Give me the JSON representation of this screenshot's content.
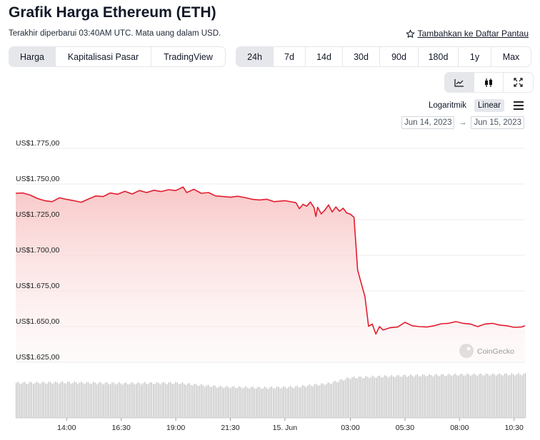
{
  "header": {
    "title": "Grafik Harga Ethereum (ETH)",
    "subtitle": "Terakhir diperbarui 03:40AM UTC. Mata uang dalam USD.",
    "watchlist_label": "Tambahkan ke Daftar Pantau"
  },
  "view_tabs": [
    {
      "label": "Harga",
      "active": true
    },
    {
      "label": "Kapitalisasi Pasar",
      "active": false
    },
    {
      "label": "TradingView",
      "active": false
    }
  ],
  "range_tabs": [
    {
      "label": "24h",
      "active": true
    },
    {
      "label": "7d",
      "active": false
    },
    {
      "label": "14d",
      "active": false
    },
    {
      "label": "30d",
      "active": false
    },
    {
      "label": "90d",
      "active": false
    },
    {
      "label": "180d",
      "active": false
    },
    {
      "label": "1y",
      "active": false
    },
    {
      "label": "Max",
      "active": false
    }
  ],
  "chart_tools": [
    {
      "icon": "line-chart-icon",
      "active": true
    },
    {
      "icon": "candlestick-icon",
      "active": false
    },
    {
      "icon": "expand-icon",
      "active": false
    }
  ],
  "scale": {
    "log_label": "Logaritmik",
    "linear_label": "Linear",
    "selected": "linear"
  },
  "date_range": {
    "from": "Jun 14, 2023",
    "to": "Jun 15, 2023",
    "arrow": "→"
  },
  "watermark": "CoinGecko",
  "colors": {
    "line": "#e11d2e",
    "fill_top": "#f8c4c4",
    "volume": "#c4c4c4",
    "grid": "#eeeeee",
    "active_bg": "#e5e7eb"
  },
  "chart_data": {
    "type": "area",
    "title": "Grafik Harga Ethereum (ETH)",
    "currency": "USD",
    "y_scale": "linear",
    "ylim": [
      1625,
      1775
    ],
    "y_ticks": [
      1625,
      1650,
      1675,
      1700,
      1725,
      1750,
      1775
    ],
    "y_tick_labels": [
      "US$1.625,00",
      "US$1.650,00",
      "US$1.675,00",
      "US$1.700,00",
      "US$1.725,00",
      "US$1.750,00",
      "US$1.775,00"
    ],
    "x_start": "2023-06-14 11:40",
    "x_end": "2023-06-15 11:00",
    "x_ticks": [
      "2023-06-14 14:00",
      "2023-06-14 16:30",
      "2023-06-14 19:00",
      "2023-06-14 21:30",
      "2023-06-15 00:00",
      "2023-06-15 03:00",
      "2023-06-15 05:30",
      "2023-06-15 08:00",
      "2023-06-15 10:30"
    ],
    "x_tick_labels": [
      "14:00",
      "16:30",
      "19:00",
      "21:30",
      "15. Jun",
      "03:00",
      "05:30",
      "08:00",
      "10:30"
    ],
    "series": [
      {
        "points": [
          [
            "2023-06-14 11:40",
            1743.5
          ],
          [
            "2023-06-14 12:00",
            1743.7
          ],
          [
            "2023-06-14 12:20",
            1742.2
          ],
          [
            "2023-06-14 12:40",
            1739.8
          ],
          [
            "2023-06-14 13:00",
            1738.3
          ],
          [
            "2023-06-14 13:20",
            1737.6
          ],
          [
            "2023-06-14 13:40",
            1740.3
          ],
          [
            "2023-06-14 14:00",
            1739.2
          ],
          [
            "2023-06-14 14:20",
            1738.3
          ],
          [
            "2023-06-14 14:40",
            1737.2
          ],
          [
            "2023-06-14 15:00",
            1739.5
          ],
          [
            "2023-06-14 15:20",
            1741.6
          ],
          [
            "2023-06-14 15:40",
            1741.2
          ],
          [
            "2023-06-14 16:00",
            1743.7
          ],
          [
            "2023-06-14 16:20",
            1742.8
          ],
          [
            "2023-06-14 16:40",
            1744.9
          ],
          [
            "2023-06-14 17:00",
            1743.0
          ],
          [
            "2023-06-14 17:20",
            1745.4
          ],
          [
            "2023-06-14 17:40",
            1744.0
          ],
          [
            "2023-06-14 18:00",
            1745.6
          ],
          [
            "2023-06-14 18:20",
            1744.7
          ],
          [
            "2023-06-14 18:40",
            1746.0
          ],
          [
            "2023-06-14 19:00",
            1745.4
          ],
          [
            "2023-06-14 19:20",
            1747.9
          ],
          [
            "2023-06-14 19:30",
            1744.0
          ],
          [
            "2023-06-14 19:50",
            1746.3
          ],
          [
            "2023-06-14 20:10",
            1743.5
          ],
          [
            "2023-06-14 20:30",
            1744.0
          ],
          [
            "2023-06-14 20:50",
            1741.6
          ],
          [
            "2023-06-14 21:10",
            1741.2
          ],
          [
            "2023-06-14 21:30",
            1740.7
          ],
          [
            "2023-06-14 21:50",
            1741.4
          ],
          [
            "2023-06-14 22:10",
            1740.5
          ],
          [
            "2023-06-14 22:30",
            1739.3
          ],
          [
            "2023-06-14 22:50",
            1738.8
          ],
          [
            "2023-06-14 23:10",
            1739.3
          ],
          [
            "2023-06-14 23:30",
            1737.6
          ],
          [
            "2023-06-15 00:00",
            1738.3
          ],
          [
            "2023-06-15 00:30",
            1736.9
          ],
          [
            "2023-06-15 00:40",
            1732.7
          ],
          [
            "2023-06-15 00:50",
            1735.8
          ],
          [
            "2023-06-15 01:00",
            1734.4
          ],
          [
            "2023-06-15 01:10",
            1737.4
          ],
          [
            "2023-06-15 01:20",
            1733.5
          ],
          [
            "2023-06-15 01:25",
            1727.2
          ],
          [
            "2023-06-15 01:30",
            1733.7
          ],
          [
            "2023-06-15 01:40",
            1729.0
          ],
          [
            "2023-06-15 01:50",
            1731.8
          ],
          [
            "2023-06-15 02:00",
            1735.3
          ],
          [
            "2023-06-15 02:10",
            1730.4
          ],
          [
            "2023-06-15 02:20",
            1733.9
          ],
          [
            "2023-06-15 02:30",
            1730.9
          ],
          [
            "2023-06-15 02:40",
            1733.0
          ],
          [
            "2023-06-15 02:50",
            1729.7
          ],
          [
            "2023-06-15 03:00",
            1728.8
          ],
          [
            "2023-06-15 03:10",
            1726.7
          ],
          [
            "2023-06-15 03:20",
            1689.6
          ],
          [
            "2023-06-15 03:30",
            1680.3
          ],
          [
            "2023-06-15 03:40",
            1671.1
          ],
          [
            "2023-06-15 03:50",
            1650.2
          ],
          [
            "2023-06-15 04:00",
            1651.8
          ],
          [
            "2023-06-15 04:10",
            1644.8
          ],
          [
            "2023-06-15 04:20",
            1650.0
          ],
          [
            "2023-06-15 04:30",
            1647.6
          ],
          [
            "2023-06-15 04:50",
            1649.3
          ],
          [
            "2023-06-15 05:10",
            1649.7
          ],
          [
            "2023-06-15 05:30",
            1653.0
          ],
          [
            "2023-06-15 05:50",
            1650.6
          ],
          [
            "2023-06-15 06:10",
            1650.0
          ],
          [
            "2023-06-15 06:30",
            1649.7
          ],
          [
            "2023-06-15 06:50",
            1650.6
          ],
          [
            "2023-06-15 07:10",
            1652.0
          ],
          [
            "2023-06-15 07:30",
            1652.3
          ],
          [
            "2023-06-15 07:50",
            1653.5
          ],
          [
            "2023-06-15 08:10",
            1652.3
          ],
          [
            "2023-06-15 08:30",
            1651.8
          ],
          [
            "2023-06-15 08:50",
            1650.0
          ],
          [
            "2023-06-15 09:10",
            1651.8
          ],
          [
            "2023-06-15 09:30",
            1652.3
          ],
          [
            "2023-06-15 09:50",
            1651.1
          ],
          [
            "2023-06-15 10:10",
            1650.6
          ],
          [
            "2023-06-15 10:30",
            1649.5
          ],
          [
            "2023-06-15 10:50",
            1649.7
          ],
          [
            "2023-06-15 11:00",
            1650.6
          ]
        ]
      }
    ],
    "volume": {
      "unit": "relative (0-1)",
      "points": [
        [
          "2023-06-14 11:40",
          0.72
        ],
        [
          "2023-06-14 14:00",
          0.73
        ],
        [
          "2023-06-14 16:30",
          0.71
        ],
        [
          "2023-06-14 19:00",
          0.72
        ],
        [
          "2023-06-14 21:00",
          0.64
        ],
        [
          "2023-06-14 23:00",
          0.62
        ],
        [
          "2023-06-15 00:30",
          0.64
        ],
        [
          "2023-06-15 02:00",
          0.71
        ],
        [
          "2023-06-15 03:00",
          0.83
        ],
        [
          "2023-06-15 05:30",
          0.87
        ],
        [
          "2023-06-15 08:00",
          0.89
        ],
        [
          "2023-06-15 11:00",
          0.9
        ]
      ]
    }
  }
}
